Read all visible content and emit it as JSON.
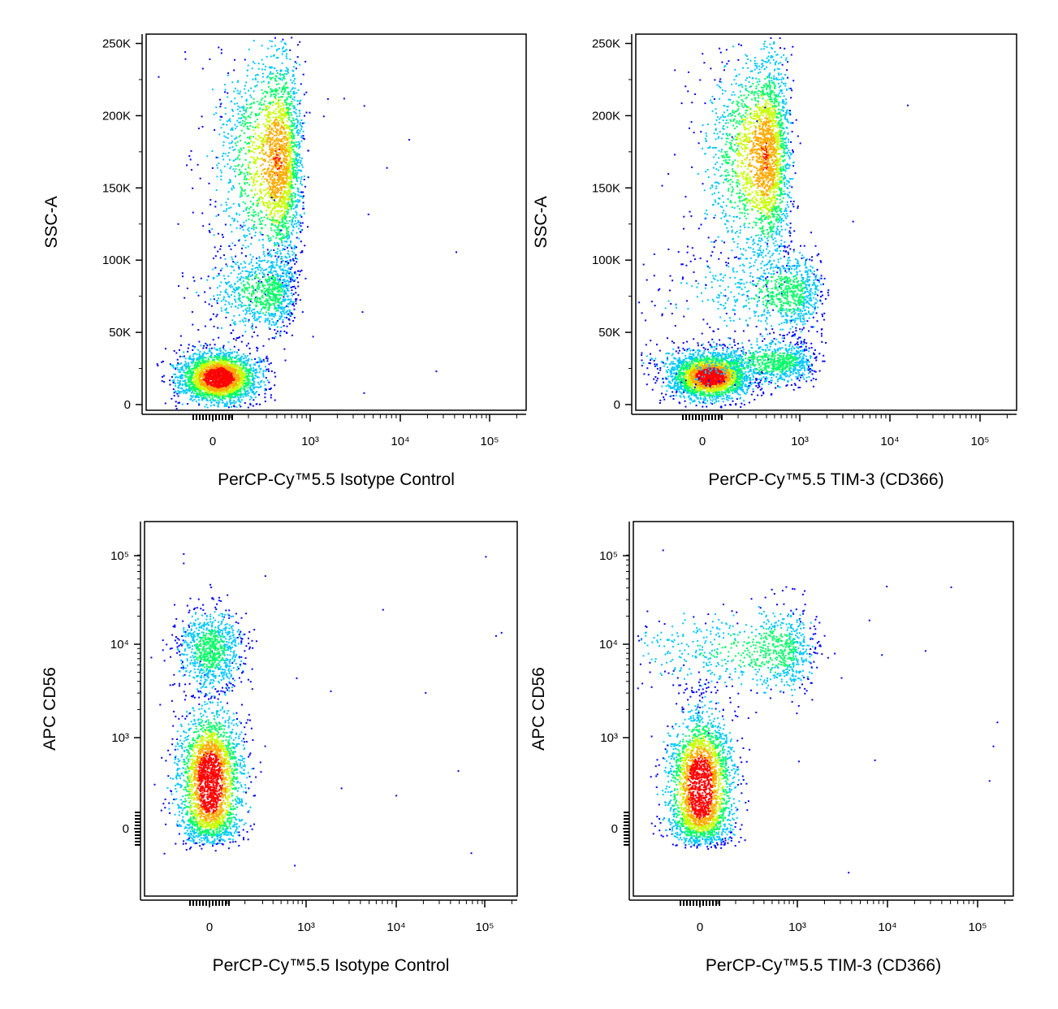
{
  "chart_data": [
    {
      "type": "scatter",
      "panel": "top-left",
      "xlabel": "PerCP-Cy™5.5 Isotype Control",
      "ylabel": "SSC-A",
      "x_scale": "biexponential",
      "y_scale": "linear",
      "xticks": [
        "0",
        "10³",
        "10⁴",
        "10⁵"
      ],
      "yticks": [
        "0",
        "50K",
        "100K",
        "150K",
        "200K",
        "250K"
      ],
      "ylim": [
        0,
        262144
      ],
      "populations": [
        {
          "x_center": 30,
          "y_center": 19000,
          "x_spread": 110,
          "y_spread": 9000,
          "density": "highest"
        },
        {
          "x_center": 400,
          "y_center": 170000,
          "x_spread": 120,
          "y_spread": 38000,
          "density": "high"
        },
        {
          "x_center": 300,
          "y_center": 78000,
          "x_spread": 120,
          "y_spread": 14000,
          "density": "medium"
        }
      ]
    },
    {
      "type": "scatter",
      "panel": "top-right",
      "xlabel": "PerCP-Cy™5.5 TIM-3 (CD366)",
      "ylabel": "SSC-A",
      "x_scale": "biexponential",
      "y_scale": "linear",
      "xticks": [
        "0",
        "10³",
        "10⁴",
        "10⁵"
      ],
      "yticks": [
        "0",
        "50K",
        "100K",
        "150K",
        "200K",
        "250K"
      ],
      "ylim": [
        0,
        262144
      ],
      "populations": [
        {
          "x_center": 40,
          "y_center": 20000,
          "x_spread": 110,
          "y_spread": 8000,
          "density": "highest"
        },
        {
          "x_center": 380,
          "y_center": 172000,
          "x_spread": 120,
          "y_spread": 36000,
          "density": "high"
        },
        {
          "x_center": 700,
          "y_center": 78000,
          "x_spread": 250,
          "y_spread": 14000,
          "density": "medium"
        },
        {
          "x_center": 500,
          "y_center": 30000,
          "x_spread": 250,
          "y_spread": 8000,
          "density": "medium"
        }
      ]
    },
    {
      "type": "scatter",
      "panel": "bottom-left",
      "xlabel": "PerCP-Cy™5.5 Isotype Control",
      "ylabel": "APC CD56",
      "x_scale": "biexponential",
      "y_scale": "biexponential",
      "xticks": [
        "0",
        "10³",
        "10⁴",
        "10⁵"
      ],
      "yticks": [
        "0",
        "10³",
        "10⁴",
        "10⁵"
      ],
      "populations": [
        {
          "x_center": 0,
          "y_center": 450,
          "x_spread": 90,
          "y_spread": 400,
          "density": "highest"
        },
        {
          "x_center": 0,
          "y_center": 9000,
          "x_spread": 90,
          "y_spread": 5000,
          "density": "medium"
        }
      ]
    },
    {
      "type": "scatter",
      "panel": "bottom-right",
      "xlabel": "PerCP-Cy™5.5 TIM-3 (CD366)",
      "ylabel": "APC CD56",
      "x_scale": "biexponential",
      "y_scale": "biexponential",
      "xticks": [
        "0",
        "10³",
        "10⁴",
        "10⁵"
      ],
      "yticks": [
        "0",
        "10³",
        "10⁴",
        "10⁵"
      ],
      "populations": [
        {
          "x_center": 0,
          "y_center": 400,
          "x_spread": 90,
          "y_spread": 400,
          "density": "highest"
        },
        {
          "x_center": 500,
          "y_center": 9000,
          "x_spread": 300,
          "y_spread": 5000,
          "density": "medium"
        }
      ]
    }
  ],
  "colors": {
    "density_scale": [
      "#0000ff",
      "#00c8ff",
      "#00ff64",
      "#c8ff00",
      "#ffaa00",
      "#ff0000"
    ]
  }
}
